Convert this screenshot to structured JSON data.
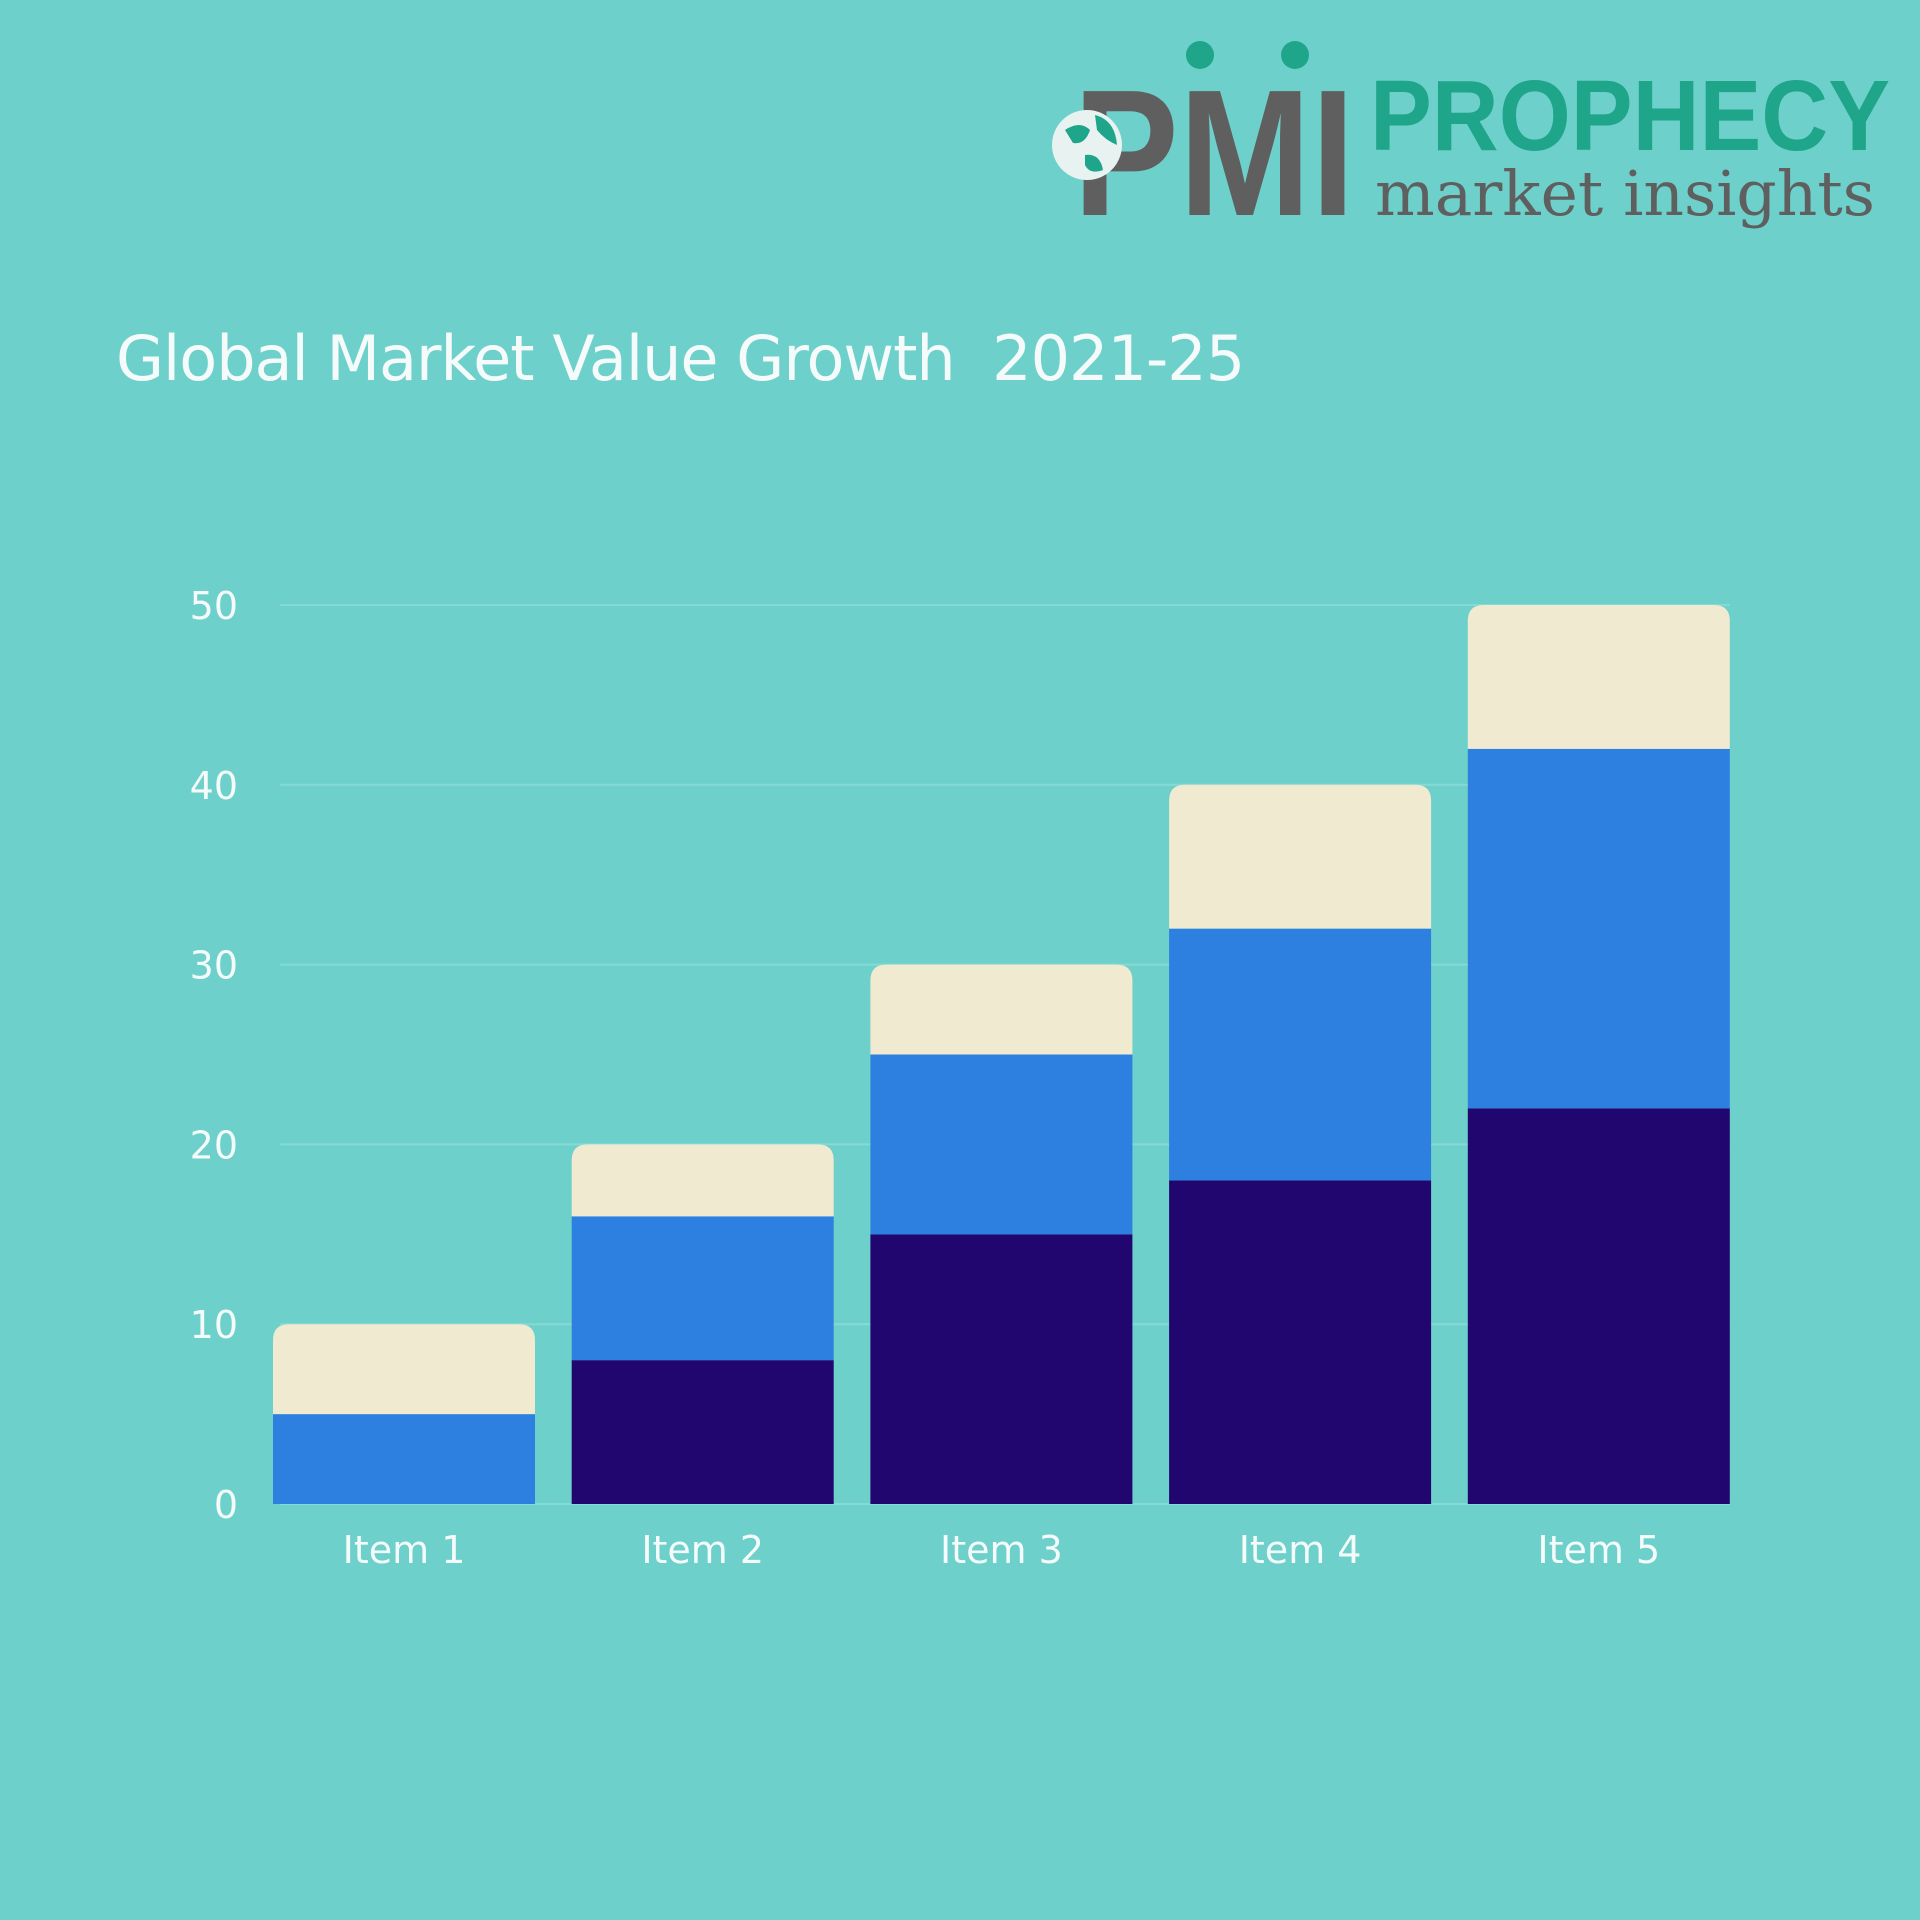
{
  "logo": {
    "mark": "PMI",
    "name": "PROPHECY",
    "tagline": "market insights"
  },
  "chart_data": {
    "type": "stacked-bar",
    "title": "Global Market Value Growth  2021-25",
    "categories": [
      "Item 1",
      "Item 2",
      "Item 3",
      "Item 4",
      "Item 5"
    ],
    "series": [
      {
        "values": [
          0,
          8,
          15,
          18,
          22
        ],
        "color": "#20066e"
      },
      {
        "values": [
          5,
          8,
          10,
          14,
          20
        ],
        "color": "#2d80e0"
      },
      {
        "values": [
          5,
          4,
          5,
          8,
          8
        ],
        "color": "#f0ead0"
      }
    ],
    "ylim": [
      0,
      50
    ],
    "yticks": [
      0,
      10,
      20,
      30,
      40,
      50
    ],
    "grid": true,
    "legend": "none",
    "xlabel": "",
    "ylabel": "",
    "colors": {
      "background": "#6ed0cb",
      "text": "#f4fbfa",
      "logo_gray": "#5f5f5f",
      "logo_teal": "#1ea58a"
    }
  }
}
